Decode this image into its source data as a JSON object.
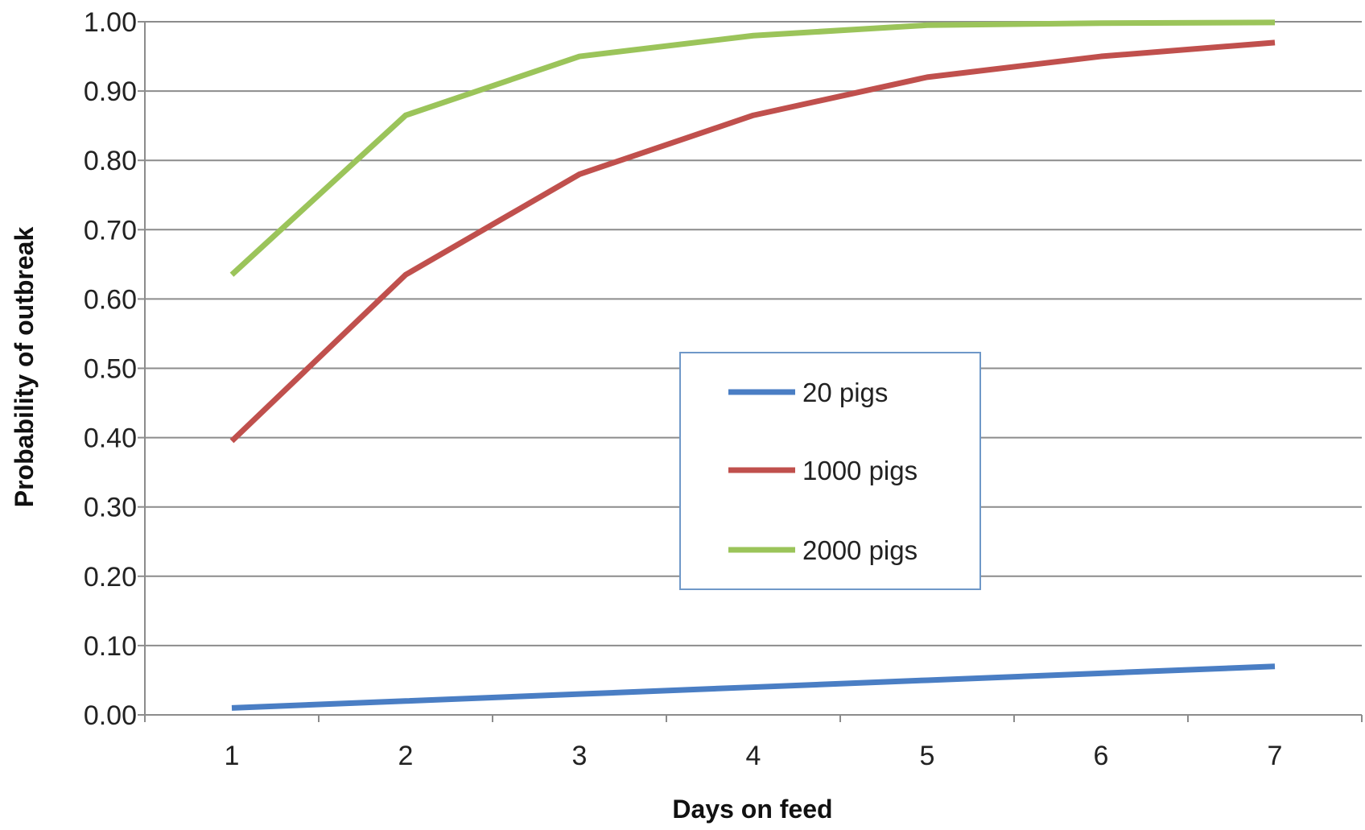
{
  "chart_data": {
    "type": "line",
    "title": "",
    "xlabel": "Days on feed",
    "ylabel": "Probability of outbreak",
    "x": [
      1,
      2,
      3,
      4,
      5,
      6,
      7
    ],
    "x_tick_labels": [
      "1",
      "2",
      "3",
      "4",
      "5",
      "6",
      "7"
    ],
    "y_tick_labels": [
      "0.00",
      "0.10",
      "0.20",
      "0.30",
      "0.40",
      "0.50",
      "0.60",
      "0.70",
      "0.80",
      "0.90",
      "1.00"
    ],
    "ylim": [
      0,
      1
    ],
    "xlim": [
      0.5,
      7.5
    ],
    "grid": "horizontal",
    "legend_position": "center-right",
    "series": [
      {
        "name": "20 pigs",
        "color": "#4a7ec4",
        "values": [
          0.01,
          0.02,
          0.03,
          0.04,
          0.05,
          0.06,
          0.07
        ]
      },
      {
        "name": "1000 pigs",
        "color": "#c0504d",
        "values": [
          0.395,
          0.635,
          0.78,
          0.865,
          0.92,
          0.95,
          0.97
        ]
      },
      {
        "name": "2000 pigs",
        "color": "#9bc45a",
        "values": [
          0.635,
          0.865,
          0.95,
          0.98,
          0.995,
          0.998,
          0.999
        ]
      }
    ]
  }
}
